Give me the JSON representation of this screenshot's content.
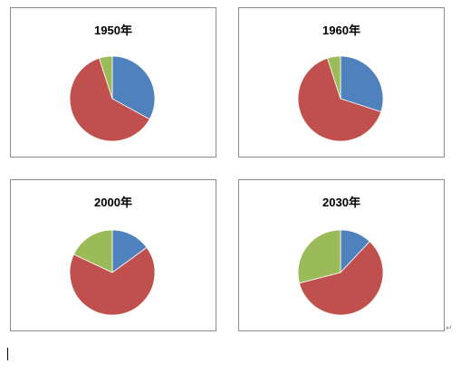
{
  "chart_data": [
    {
      "type": "pie",
      "title": "1950年",
      "slices": [
        {
          "value": 33,
          "color": "#4f81bd"
        },
        {
          "value": 62,
          "color": "#c0504d"
        },
        {
          "value": 5,
          "color": "#9bbb59"
        }
      ]
    },
    {
      "type": "pie",
      "title": "1960年",
      "slices": [
        {
          "value": 30,
          "color": "#4f81bd"
        },
        {
          "value": 65,
          "color": "#c0504d"
        },
        {
          "value": 5,
          "color": "#9bbb59"
        }
      ]
    },
    {
      "type": "pie",
      "title": "2000年",
      "slices": [
        {
          "value": 15,
          "color": "#4f81bd"
        },
        {
          "value": 67,
          "color": "#c0504d"
        },
        {
          "value": 18,
          "color": "#9bbb59"
        }
      ]
    },
    {
      "type": "pie",
      "title": "2030年",
      "slices": [
        {
          "value": 12,
          "color": "#4f81bd"
        },
        {
          "value": 59,
          "color": "#c0504d"
        },
        {
          "value": 29,
          "color": "#9bbb59"
        }
      ]
    }
  ],
  "paragraph_mark": "↵"
}
